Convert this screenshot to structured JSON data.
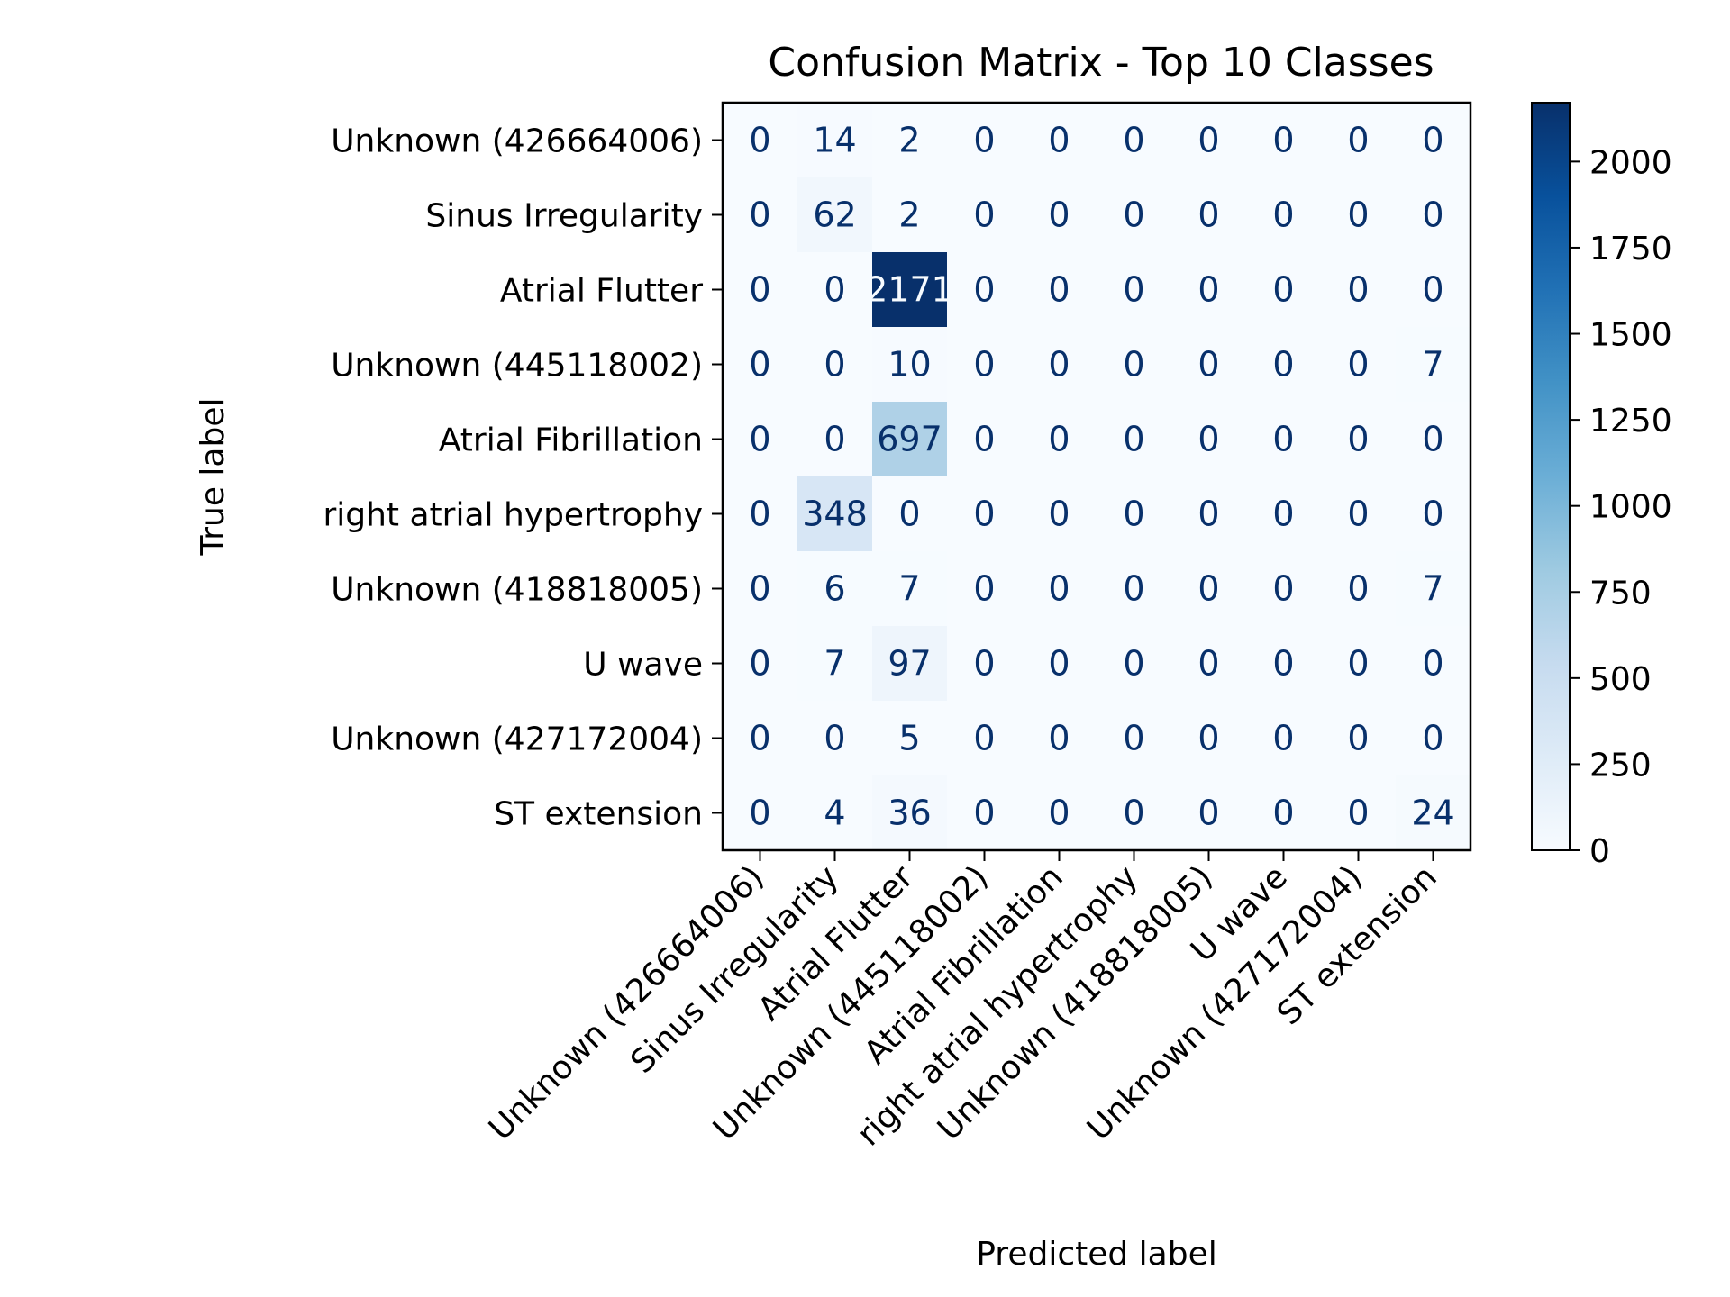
{
  "chart_data": {
    "type": "heatmap",
    "title": "Confusion Matrix - Top 10 Classes",
    "xlabel": "Predicted label",
    "ylabel": "True label",
    "labels": [
      "Unknown (426664006)",
      "Sinus Irregularity",
      "Atrial Flutter",
      "Unknown (445118002)",
      "Atrial Fibrillation",
      "right atrial hypertrophy",
      "Unknown (418818005)",
      "U wave",
      "Unknown (427172004)",
      "ST extension"
    ],
    "matrix": [
      [
        0,
        14,
        2,
        0,
        0,
        0,
        0,
        0,
        0,
        0
      ],
      [
        0,
        62,
        2,
        0,
        0,
        0,
        0,
        0,
        0,
        0
      ],
      [
        0,
        0,
        2171,
        0,
        0,
        0,
        0,
        0,
        0,
        0
      ],
      [
        0,
        0,
        10,
        0,
        0,
        0,
        0,
        0,
        0,
        7
      ],
      [
        0,
        0,
        697,
        0,
        0,
        0,
        0,
        0,
        0,
        0
      ],
      [
        0,
        348,
        0,
        0,
        0,
        0,
        0,
        0,
        0,
        0
      ],
      [
        0,
        6,
        7,
        0,
        0,
        0,
        0,
        0,
        0,
        7
      ],
      [
        0,
        7,
        97,
        0,
        0,
        0,
        0,
        0,
        0,
        0
      ],
      [
        0,
        0,
        5,
        0,
        0,
        0,
        0,
        0,
        0,
        0
      ],
      [
        0,
        4,
        36,
        0,
        0,
        0,
        0,
        0,
        0,
        24
      ]
    ],
    "colormap": "Blues",
    "colorbar": {
      "min": 0,
      "max": 2171,
      "ticks": [
        0,
        250,
        500,
        750,
        1000,
        1250,
        1500,
        1750,
        2000
      ]
    },
    "x_tick_rotation_deg": 45,
    "grid": false
  }
}
